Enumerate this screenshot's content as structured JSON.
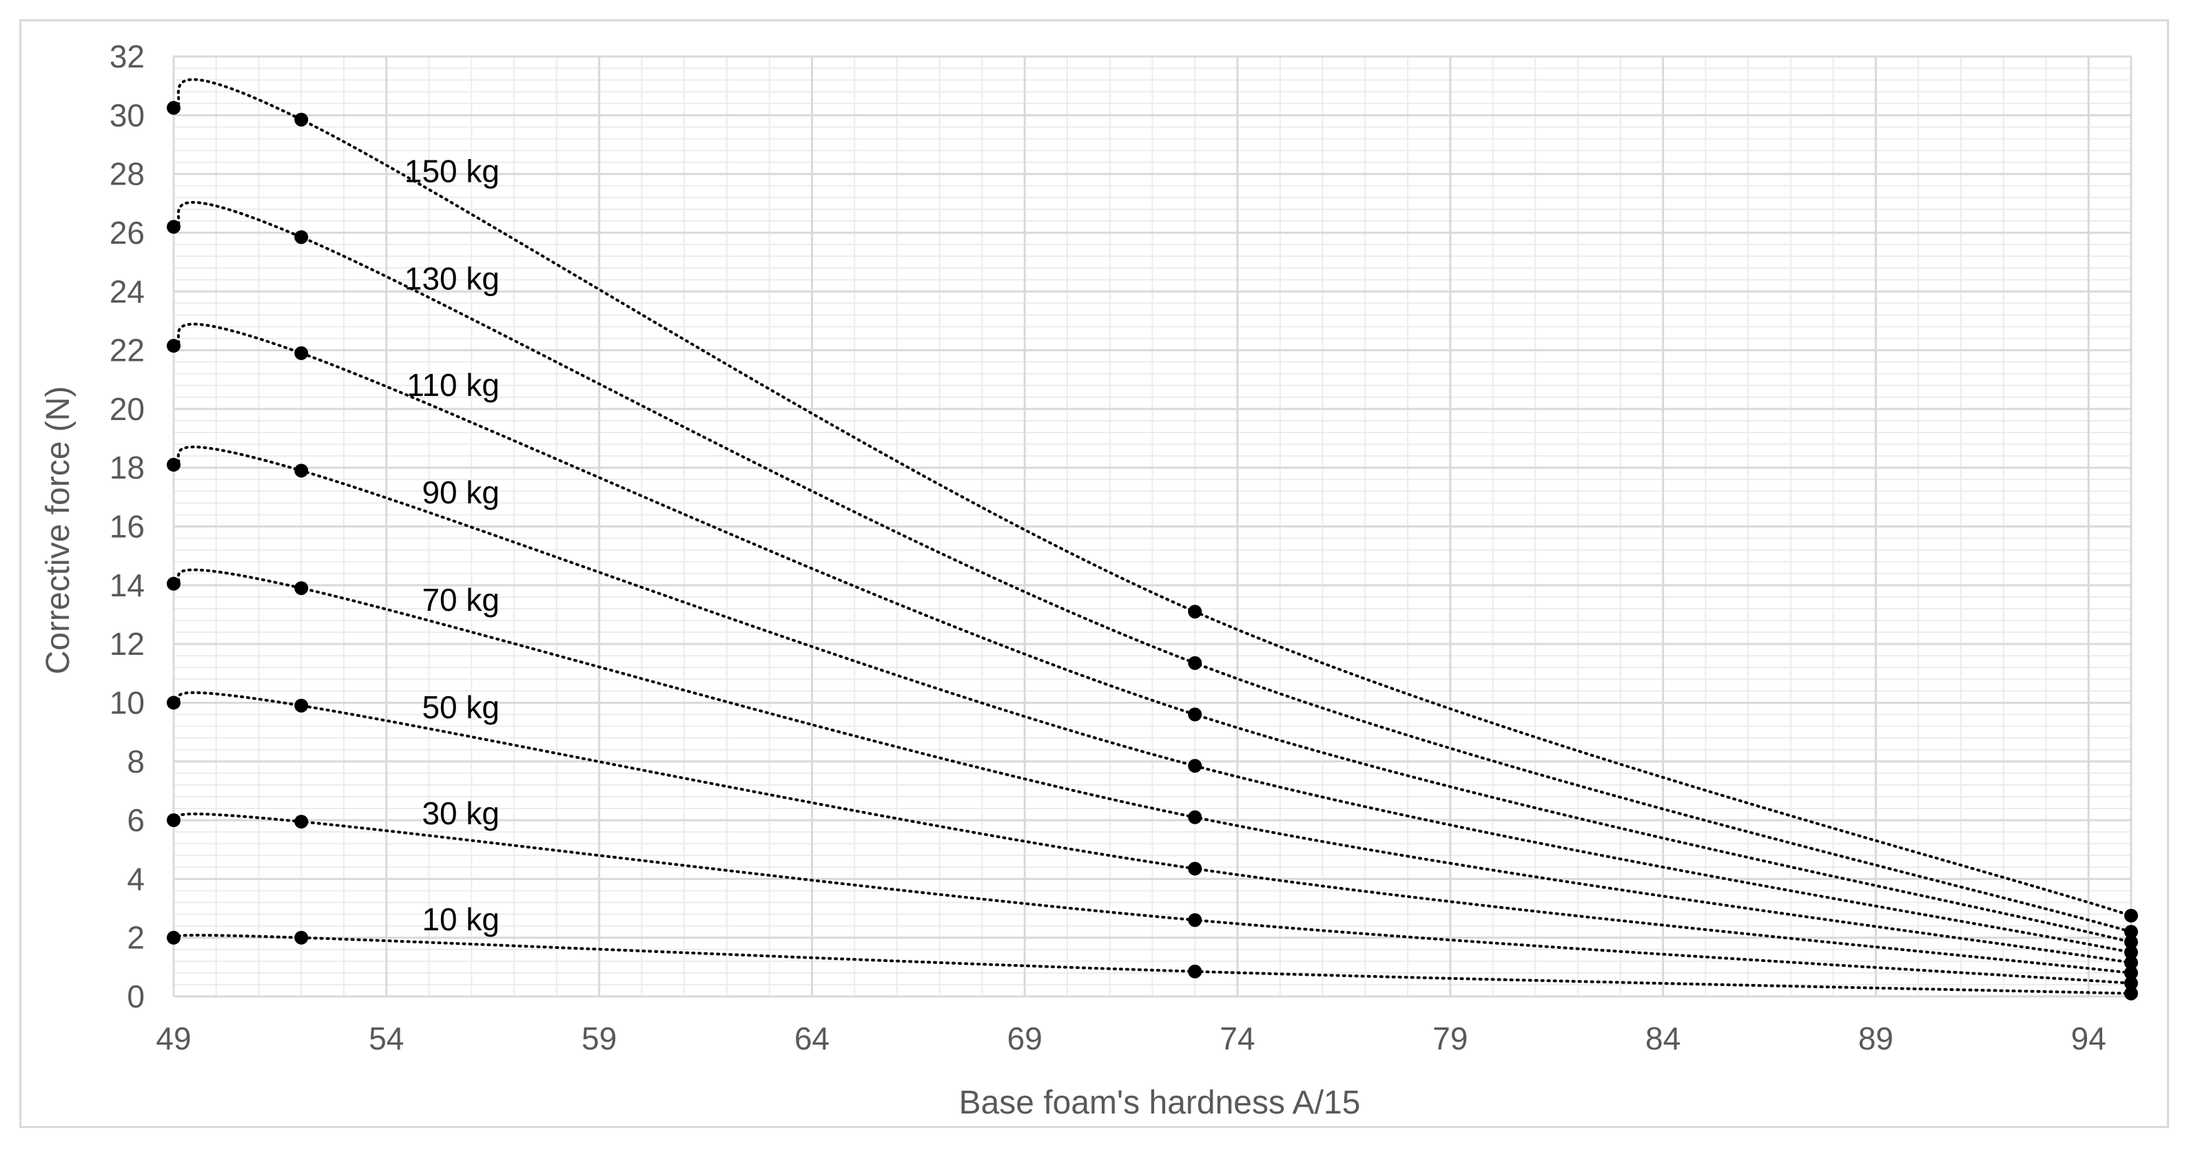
{
  "chart_data": {
    "type": "line",
    "xlabel": "Base foam's hardness A/15",
    "ylabel": "Corrective force (N)",
    "xlim": [
      49,
      95
    ],
    "ylim": [
      0,
      32
    ],
    "x_ticks": [
      "49",
      "54",
      "59",
      "64",
      "69",
      "74",
      "79",
      "84",
      "89",
      "94"
    ],
    "y_ticks": [
      "0",
      "2",
      "4",
      "6",
      "8",
      "10",
      "12",
      "14",
      "16",
      "18",
      "20",
      "22",
      "24",
      "26",
      "28",
      "30",
      "32"
    ],
    "x_tick_values": [
      49,
      54,
      59,
      64,
      69,
      74,
      79,
      84,
      89,
      94
    ],
    "y_tick_values": [
      0,
      2,
      4,
      6,
      8,
      10,
      12,
      14,
      16,
      18,
      20,
      22,
      24,
      26,
      28,
      30,
      32
    ],
    "grid": true,
    "minor_grid": true,
    "legend": "none (inline series labels)",
    "line_style": "dotted",
    "marker": "filled-circle",
    "x": [
      49,
      52,
      73,
      95
    ],
    "series": [
      {
        "name": "10 kg",
        "values": [
          2.0,
          2.0,
          0.85,
          0.1
        ]
      },
      {
        "name": "30 kg",
        "values": [
          6.0,
          5.95,
          2.6,
          0.45
        ]
      },
      {
        "name": "50 kg",
        "values": [
          10.0,
          9.9,
          4.35,
          0.8
        ]
      },
      {
        "name": "70 kg",
        "values": [
          14.05,
          13.9,
          6.1,
          1.15
        ]
      },
      {
        "name": "90 kg",
        "values": [
          18.1,
          17.9,
          7.85,
          1.5
        ]
      },
      {
        "name": "110 kg",
        "values": [
          22.15,
          21.9,
          9.6,
          1.85
        ]
      },
      {
        "name": "130 kg",
        "values": [
          26.2,
          25.85,
          11.35,
          2.2
        ]
      },
      {
        "name": "150 kg",
        "values": [
          30.25,
          29.85,
          13.1,
          2.75
        ]
      }
    ],
    "colors": {
      "series": "#000000",
      "grid_major": "#d9d9d9",
      "grid_minor": "#ececec",
      "text": "#595959",
      "frame": "#d9d9d9"
    }
  }
}
